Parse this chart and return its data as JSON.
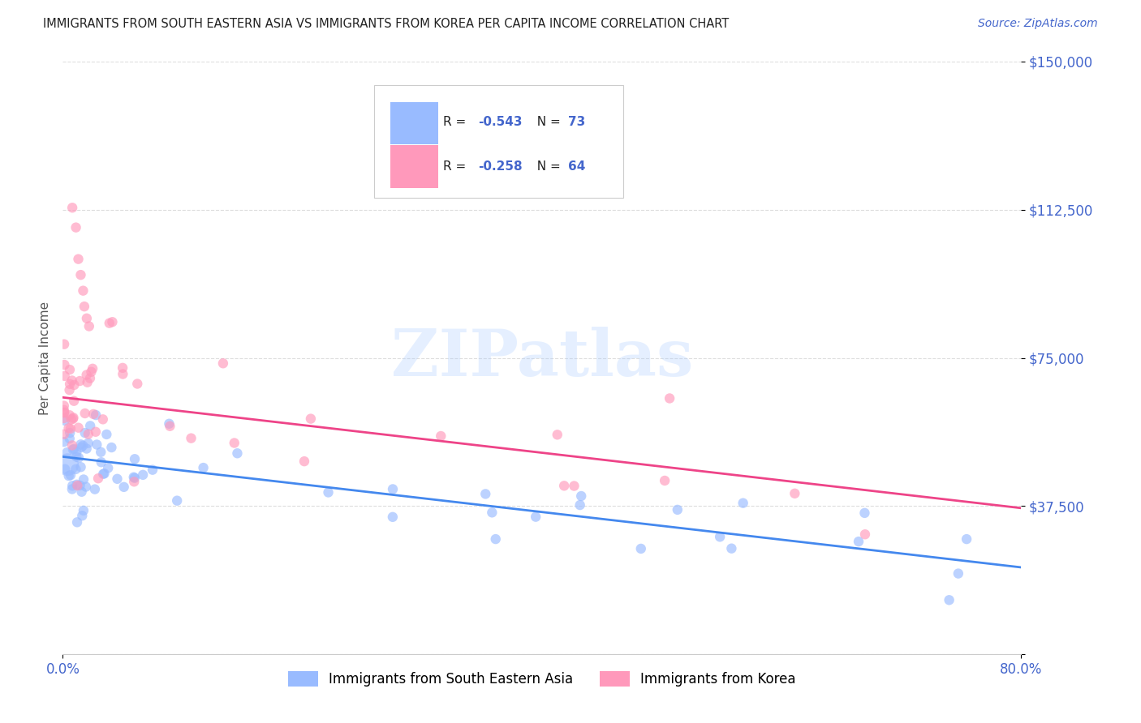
{
  "title": "IMMIGRANTS FROM SOUTH EASTERN ASIA VS IMMIGRANTS FROM KOREA PER CAPITA INCOME CORRELATION CHART",
  "source": "Source: ZipAtlas.com",
  "ylabel": "Per Capita Income",
  "yticks": [
    0,
    37500,
    75000,
    112500,
    150000
  ],
  "ytick_labels": [
    "",
    "$37,500",
    "$75,000",
    "$112,500",
    "$150,000"
  ],
  "xlim": [
    0,
    0.8
  ],
  "ylim": [
    0,
    150000
  ],
  "watermark": "ZIPatlas",
  "legend_r1": "-0.543",
  "legend_n1": "73",
  "legend_r2": "-0.258",
  "legend_n2": "64",
  "color_blue": "#99BBFF",
  "color_pink": "#FF99BB",
  "color_blue_line": "#4488EE",
  "color_pink_line": "#EE4488",
  "title_color": "#222222",
  "axis_label_color": "#4466CC",
  "background_color": "#FFFFFF",
  "legend_label1": "Immigrants from South Eastern Asia",
  "legend_label2": "Immigrants from Korea",
  "blue_trend_x0": 0.0,
  "blue_trend_y0": 50000,
  "blue_trend_x1": 0.8,
  "blue_trend_y1": 22000,
  "pink_trend_x0": 0.0,
  "pink_trend_y0": 65000,
  "pink_trend_x1": 0.8,
  "pink_trend_y1": 37000
}
